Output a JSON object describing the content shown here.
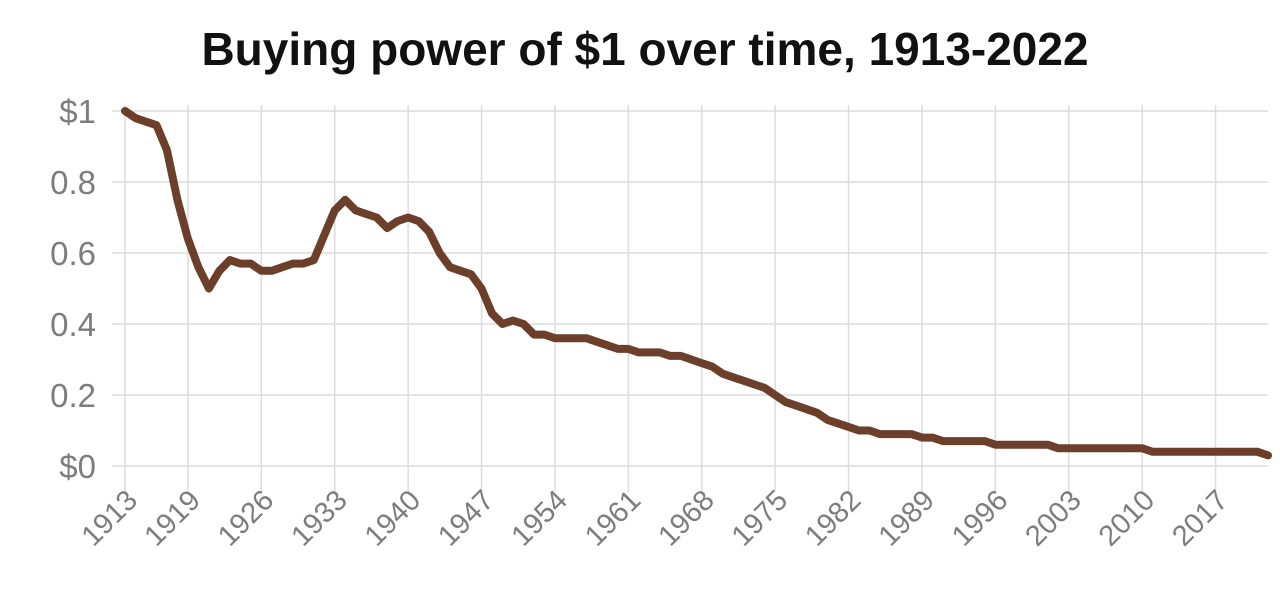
{
  "chart_data": {
    "type": "line",
    "title": "Buying power of $1 over time, 1913-2022",
    "xlabel": "",
    "ylabel": "",
    "xlim": [
      1913,
      2022
    ],
    "ylim": [
      0,
      1
    ],
    "y_ticks": [
      {
        "value": 1,
        "label": "$1"
      },
      {
        "value": 0.8,
        "label": "0.8"
      },
      {
        "value": 0.6,
        "label": "0.6"
      },
      {
        "value": 0.4,
        "label": "0.4"
      },
      {
        "value": 0.2,
        "label": "0.2"
      },
      {
        "value": 0,
        "label": "$0"
      }
    ],
    "x_ticks": [
      {
        "value": 1913,
        "label": "1913"
      },
      {
        "value": 1919,
        "label": "1919"
      },
      {
        "value": 1926,
        "label": "1926"
      },
      {
        "value": 1933,
        "label": "1933"
      },
      {
        "value": 1940,
        "label": "1940"
      },
      {
        "value": 1947,
        "label": "1947"
      },
      {
        "value": 1954,
        "label": "1954"
      },
      {
        "value": 1961,
        "label": "1961"
      },
      {
        "value": 1968,
        "label": "1968"
      },
      {
        "value": 1975,
        "label": "1975"
      },
      {
        "value": 1982,
        "label": "1982"
      },
      {
        "value": 1989,
        "label": "1989"
      },
      {
        "value": 1996,
        "label": "1996"
      },
      {
        "value": 2003,
        "label": "2003"
      },
      {
        "value": 2010,
        "label": "2010"
      },
      {
        "value": 2017,
        "label": "2017"
      }
    ],
    "grid": true,
    "line_color": "#6b3f2a",
    "series": [
      {
        "x": [
          1913,
          1914,
          1915,
          1916,
          1917,
          1918,
          1919,
          1920,
          1921,
          1922,
          1923,
          1924,
          1925,
          1926,
          1927,
          1928,
          1929,
          1930,
          1931,
          1932,
          1933,
          1934,
          1935,
          1936,
          1937,
          1938,
          1939,
          1940,
          1941,
          1942,
          1943,
          1944,
          1945,
          1946,
          1947,
          1948,
          1949,
          1950,
          1951,
          1952,
          1953,
          1954,
          1955,
          1956,
          1957,
          1958,
          1959,
          1960,
          1961,
          1962,
          1963,
          1964,
          1965,
          1966,
          1967,
          1968,
          1969,
          1970,
          1971,
          1972,
          1973,
          1974,
          1975,
          1976,
          1977,
          1978,
          1979,
          1980,
          1981,
          1982,
          1983,
          1984,
          1985,
          1986,
          1987,
          1988,
          1989,
          1990,
          1991,
          1992,
          1993,
          1994,
          1995,
          1996,
          1997,
          1998,
          1999,
          2000,
          2001,
          2002,
          2003,
          2004,
          2005,
          2006,
          2007,
          2008,
          2009,
          2010,
          2011,
          2012,
          2013,
          2014,
          2015,
          2016,
          2017,
          2018,
          2019,
          2020,
          2021,
          2022
        ],
        "values": [
          1.0,
          0.98,
          0.97,
          0.96,
          0.89,
          0.75,
          0.64,
          0.56,
          0.5,
          0.55,
          0.58,
          0.57,
          0.57,
          0.55,
          0.55,
          0.56,
          0.57,
          0.57,
          0.58,
          0.65,
          0.72,
          0.75,
          0.72,
          0.71,
          0.7,
          0.67,
          0.69,
          0.7,
          0.69,
          0.66,
          0.6,
          0.56,
          0.55,
          0.54,
          0.5,
          0.43,
          0.4,
          0.41,
          0.4,
          0.37,
          0.37,
          0.36,
          0.36,
          0.36,
          0.36,
          0.35,
          0.34,
          0.33,
          0.33,
          0.32,
          0.32,
          0.32,
          0.31,
          0.31,
          0.3,
          0.29,
          0.28,
          0.26,
          0.25,
          0.24,
          0.23,
          0.22,
          0.2,
          0.18,
          0.17,
          0.16,
          0.15,
          0.13,
          0.12,
          0.11,
          0.1,
          0.1,
          0.09,
          0.09,
          0.09,
          0.09,
          0.08,
          0.08,
          0.07,
          0.07,
          0.07,
          0.07,
          0.07,
          0.06,
          0.06,
          0.06,
          0.06,
          0.06,
          0.06,
          0.05,
          0.05,
          0.05,
          0.05,
          0.05,
          0.05,
          0.05,
          0.05,
          0.05,
          0.04,
          0.04,
          0.04,
          0.04,
          0.04,
          0.04,
          0.04,
          0.04,
          0.04,
          0.04,
          0.04,
          0.03
        ]
      }
    ]
  }
}
